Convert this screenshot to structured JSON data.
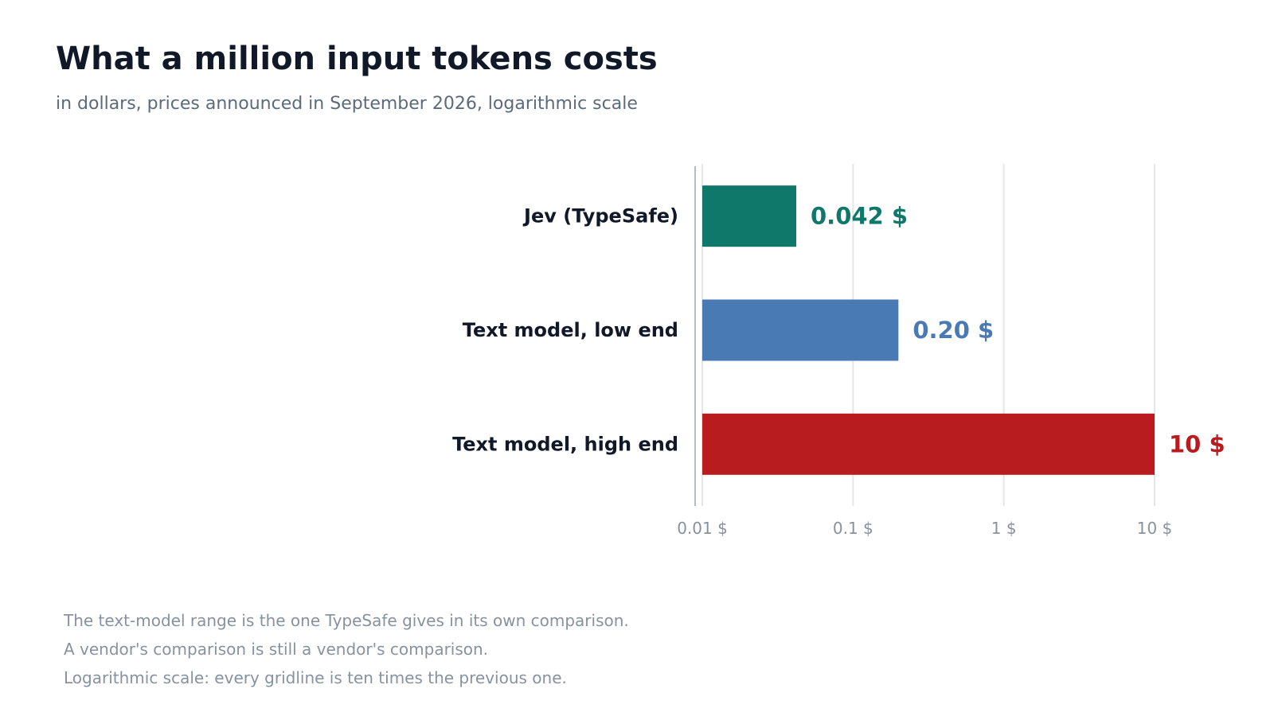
{
  "chart_data": {
    "type": "bar",
    "orientation": "horizontal",
    "title": "What a million input tokens costs",
    "subtitle": "in dollars, prices announced in September 2026, logarithmic scale",
    "scale": "log",
    "xlim": [
      0.01,
      10
    ],
    "grid": true,
    "x_ticks": [
      {
        "value": 0.01,
        "label": "0.01 $"
      },
      {
        "value": 0.1,
        "label": "0.1 $"
      },
      {
        "value": 1,
        "label": "1 $"
      },
      {
        "value": 10,
        "label": "10 $"
      }
    ],
    "bars": [
      {
        "category": "Jev (TypeSafe)",
        "value": 0.042,
        "label": "0.042 $",
        "color": "#10776b"
      },
      {
        "category": "Text model, low end",
        "value": 0.2,
        "label": "0.20 $",
        "color": "#4a7ab4"
      },
      {
        "category": "Text model, high end",
        "value": 10,
        "label": "10 $",
        "color": "#b81c1e"
      }
    ]
  },
  "notes": [
    "The text-model range is the one TypeSafe gives in its own comparison.",
    "A vendor's comparison is still a vendor's comparison.",
    "Logarithmic scale: every gridline is ten times the previous one."
  ],
  "colors": {
    "title": "#111827",
    "subtitle": "#5b6b7c",
    "category_label": "#111827",
    "tick_label": "#8792a0",
    "gridline": "#e3e6ea",
    "axis": "#b3bcc6"
  }
}
